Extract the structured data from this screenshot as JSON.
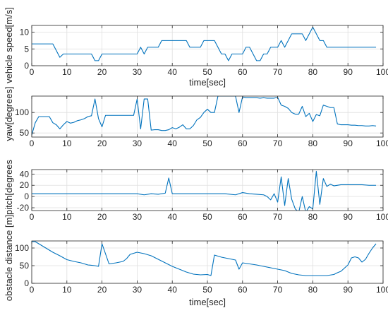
{
  "chart_data": [
    {
      "type": "line",
      "ylabel": "vehicle speed[m/s]",
      "xlabel": "time[sec]",
      "xlim": [
        0,
        100
      ],
      "ylim": [
        0,
        12
      ],
      "xticks": [
        "0",
        "10",
        "20",
        "30",
        "40",
        "50",
        "60",
        "70",
        "80",
        "90",
        "100"
      ],
      "yticks": [
        "0",
        "5",
        "10"
      ],
      "yticks_values": [
        0,
        5,
        10
      ],
      "grid": true,
      "color": "#0072bd",
      "x": [
        0,
        1,
        2,
        3,
        4,
        5,
        6,
        7,
        8,
        9,
        10,
        11,
        12,
        13,
        14,
        15,
        16,
        17,
        18,
        19,
        20,
        21,
        22,
        23,
        24,
        25,
        26,
        27,
        28,
        29,
        30,
        31,
        32,
        33,
        34,
        35,
        36,
        37,
        38,
        39,
        40,
        41,
        42,
        43,
        44,
        45,
        46,
        47,
        48,
        49,
        50,
        51,
        52,
        53,
        54,
        55,
        56,
        57,
        58,
        59,
        60,
        61,
        62,
        63,
        64,
        65,
        66,
        67,
        68,
        69,
        70,
        71,
        72,
        73,
        74,
        75,
        76,
        77,
        78,
        79,
        80,
        81,
        82,
        83,
        84,
        85,
        86,
        87,
        88,
        89,
        90,
        91,
        92,
        93,
        94,
        95,
        96,
        97,
        98
      ],
      "y": [
        6.5,
        6.5,
        6.5,
        6.5,
        6.5,
        6.5,
        6.5,
        4.5,
        2.5,
        3.5,
        3.5,
        3.5,
        3.5,
        3.5,
        3.5,
        3.5,
        3.5,
        3.5,
        1.5,
        1.5,
        3.5,
        3.5,
        3.5,
        3.5,
        3.5,
        3.5,
        3.5,
        3.5,
        3.5,
        3.5,
        3.5,
        5.5,
        3.5,
        5.5,
        5.5,
        5.5,
        5.5,
        7.5,
        7.5,
        7.5,
        7.5,
        7.5,
        7.5,
        7.5,
        7.5,
        5.5,
        5.5,
        5.5,
        5.5,
        7.5,
        7.5,
        7.5,
        7.5,
        5.5,
        3.5,
        3.5,
        1.5,
        3.5,
        3.5,
        3.5,
        3.5,
        5.5,
        5.5,
        3.5,
        1.5,
        1.5,
        3.5,
        3.5,
        5.5,
        5.5,
        5.5,
        7.5,
        5.5,
        7.5,
        9.5,
        9.5,
        9.5,
        9.5,
        7.5,
        9.5,
        11.5,
        9.5,
        7.5,
        7.5,
        5.5,
        5.5,
        5.5,
        5.5,
        5.5,
        5.5,
        5.5,
        5.5,
        5.5,
        5.5,
        5.5,
        5.5,
        5.5,
        5.5,
        5.5
      ]
    },
    {
      "type": "line",
      "ylabel": "yaw[degrees]",
      "xlabel": "",
      "xlim": [
        0,
        100
      ],
      "ylim": [
        40,
        140
      ],
      "xticks": [
        "0",
        "10",
        "20",
        "30",
        "40",
        "50",
        "60",
        "70",
        "80",
        "90",
        "100"
      ],
      "yticks": [
        "50",
        "100"
      ],
      "yticks_values": [
        50,
        100
      ],
      "grid": true,
      "color": "#0072bd",
      "x": [
        0,
        1,
        2,
        3,
        4,
        5,
        6,
        7,
        8,
        9,
        10,
        11,
        12,
        13,
        14,
        15,
        16,
        17,
        18,
        19,
        20,
        21,
        22,
        23,
        24,
        25,
        26,
        27,
        28,
        29,
        30,
        31,
        32,
        33,
        34,
        35,
        36,
        37,
        38,
        39,
        40,
        41,
        42,
        43,
        44,
        45,
        46,
        47,
        48,
        49,
        50,
        51,
        52,
        53,
        54,
        55,
        56,
        57,
        58,
        59,
        60,
        61,
        62,
        63,
        64,
        65,
        66,
        67,
        68,
        69,
        70,
        71,
        72,
        73,
        74,
        75,
        76,
        77,
        78,
        79,
        80,
        81,
        82,
        83,
        84,
        85,
        86,
        87,
        88,
        89,
        90,
        91,
        92,
        93,
        94,
        95,
        96,
        97,
        98
      ],
      "y": [
        45,
        75,
        90,
        90,
        90,
        90,
        75,
        70,
        60,
        70,
        78,
        74,
        76,
        80,
        82,
        85,
        90,
        92,
        133,
        85,
        65,
        93,
        93,
        93,
        93,
        93,
        93,
        93,
        93,
        93,
        133,
        60,
        133,
        133,
        57,
        58,
        58,
        56,
        56,
        58,
        63,
        60,
        64,
        70,
        60,
        60,
        68,
        82,
        88,
        100,
        108,
        100,
        100,
        140,
        140,
        140,
        140,
        140,
        140,
        100,
        138,
        136,
        136,
        136,
        136,
        135,
        136,
        135,
        135,
        135,
        137,
        118,
        115,
        110,
        100,
        96,
        96,
        115,
        90,
        98,
        78,
        95,
        92,
        118,
        115,
        112,
        112,
        72,
        70,
        70,
        70,
        69,
        69,
        68,
        68,
        67,
        67,
        68,
        67
      ]
    },
    {
      "type": "line",
      "ylabel": "pitch[degrees",
      "xlabel": "",
      "xlim": [
        0,
        100
      ],
      "ylim": [
        -25,
        48
      ],
      "xticks": [
        "0",
        "10",
        "20",
        "30",
        "40",
        "50",
        "60",
        "70",
        "80",
        "90",
        "100"
      ],
      "yticks": [
        "-20",
        "0",
        "20",
        "40"
      ],
      "yticks_values": [
        -20,
        0,
        20,
        40
      ],
      "grid": true,
      "color": "#0072bd",
      "x": [
        0,
        5,
        10,
        15,
        20,
        25,
        30,
        32,
        34,
        36,
        38,
        39,
        40,
        42,
        45,
        50,
        55,
        58,
        60,
        62,
        64,
        66,
        67,
        68,
        69,
        70,
        71,
        72,
        73,
        74,
        75,
        76,
        77,
        78,
        79,
        80,
        81,
        82,
        83,
        84,
        85,
        86,
        88,
        90,
        92,
        94,
        96,
        98
      ],
      "y": [
        5,
        5,
        5,
        5,
        5,
        5,
        5,
        3,
        5,
        4,
        6,
        33,
        5,
        5,
        5,
        5,
        5,
        3,
        7,
        5,
        4,
        3,
        0,
        -6,
        5,
        -10,
        35,
        -16,
        32,
        -5,
        -22,
        -28,
        0,
        -28,
        -18,
        -22,
        45,
        -14,
        32,
        18,
        22,
        19,
        21,
        21,
        21,
        21,
        20,
        20
      ]
    },
    {
      "type": "line",
      "ylabel": "obstacle distance [m]",
      "xlabel": "time[sec]",
      "xlim": [
        0,
        100
      ],
      "ylim": [
        0,
        120
      ],
      "xticks": [
        "0",
        "10",
        "20",
        "30",
        "40",
        "50",
        "60",
        "70",
        "80",
        "90",
        "100"
      ],
      "yticks": [
        "0",
        "50",
        "100"
      ],
      "yticks_values": [
        0,
        50,
        100
      ],
      "grid": true,
      "color": "#0072bd",
      "x": [
        0,
        1,
        2,
        4,
        6,
        8,
        10,
        12,
        14,
        16,
        18,
        19,
        20,
        22,
        24,
        26,
        27,
        28,
        30,
        32,
        34,
        36,
        38,
        40,
        42,
        44,
        46,
        48,
        50,
        51,
        52,
        54,
        56,
        58,
        59,
        60,
        62,
        64,
        66,
        68,
        70,
        72,
        74,
        76,
        78,
        80,
        82,
        84,
        86,
        87,
        88,
        90,
        91,
        92,
        93,
        94,
        95,
        96,
        97,
        98
      ],
      "y": [
        118,
        118,
        112,
        100,
        88,
        78,
        67,
        62,
        58,
        52,
        50,
        48,
        112,
        55,
        58,
        62,
        70,
        82,
        88,
        84,
        78,
        68,
        58,
        48,
        40,
        32,
        26,
        24,
        25,
        22,
        80,
        74,
        70,
        66,
        40,
        58,
        55,
        52,
        48,
        44,
        40,
        36,
        28,
        24,
        22,
        22,
        22,
        22,
        25,
        30,
        34,
        52,
        72,
        75,
        72,
        60,
        68,
        85,
        100,
        112
      ]
    }
  ]
}
